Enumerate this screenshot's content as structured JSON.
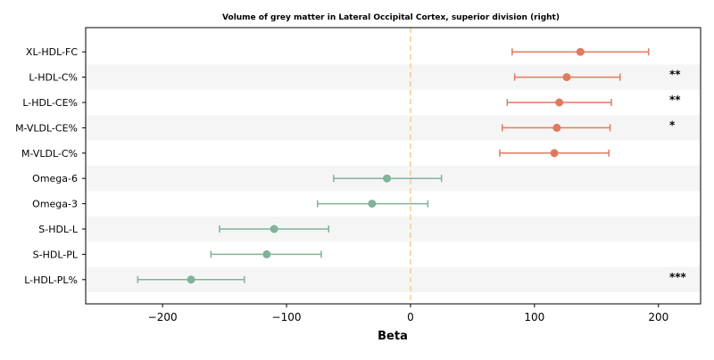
{
  "chart_data": {
    "type": "forest",
    "title": "Volume of grey matter in Lateral Occipital Cortex, superior division (right)",
    "xlabel": "Beta",
    "ylabel": "",
    "xlim": [
      -262,
      234
    ],
    "xticks": [
      -200,
      -100,
      0,
      100,
      200
    ],
    "xtick_labels": [
      "−200",
      "−100",
      "0",
      "100",
      "200"
    ],
    "reference_line": 0,
    "colors": {
      "positive": "#E07A5F",
      "negative": "#81B29A",
      "reference": "#F2CC8F",
      "band": "#f5f5f5"
    },
    "rows": [
      {
        "label": "XL-HDL-FC",
        "beta": 137,
        "ci_low": 82,
        "ci_high": 192,
        "sig": ""
      },
      {
        "label": "L-HDL-C%",
        "beta": 126,
        "ci_low": 84,
        "ci_high": 169,
        "sig": "**"
      },
      {
        "label": "L-HDL-CE%",
        "beta": 120,
        "ci_low": 78,
        "ci_high": 162,
        "sig": "**"
      },
      {
        "label": "M-VLDL-CE%",
        "beta": 118,
        "ci_low": 74,
        "ci_high": 161,
        "sig": "*"
      },
      {
        "label": "M-VLDL-C%",
        "beta": 116,
        "ci_low": 72,
        "ci_high": 160,
        "sig": ""
      },
      {
        "label": "Omega-6",
        "beta": -19,
        "ci_low": -62,
        "ci_high": 25,
        "sig": ""
      },
      {
        "label": "Omega-3",
        "beta": -31,
        "ci_low": -75,
        "ci_high": 14,
        "sig": ""
      },
      {
        "label": "S-HDL-L",
        "beta": -110,
        "ci_low": -154,
        "ci_high": -66,
        "sig": ""
      },
      {
        "label": "S-HDL-PL",
        "beta": -116,
        "ci_low": -161,
        "ci_high": -72,
        "sig": ""
      },
      {
        "label": "L-HDL-PL%",
        "beta": -177,
        "ci_low": -220,
        "ci_high": -134,
        "sig": "***"
      }
    ]
  }
}
